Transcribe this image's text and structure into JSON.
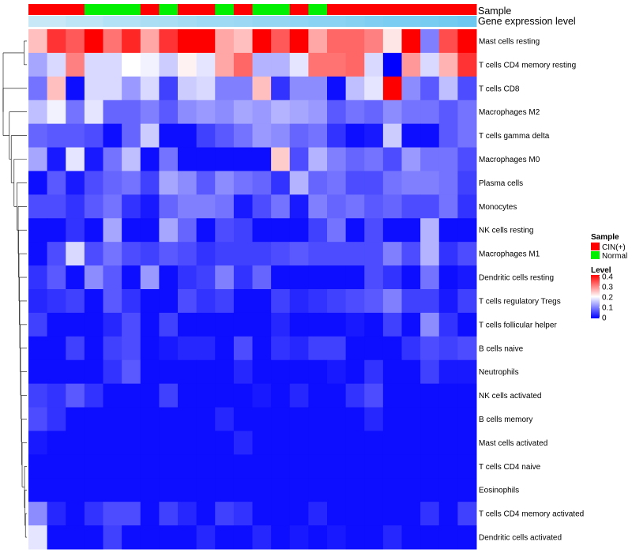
{
  "chart_data": {
    "type": "heatmap",
    "title": "",
    "annotations": [
      {
        "label": "Sample",
        "kind": "categorical"
      },
      {
        "label": "Gene expression level",
        "kind": "continuous"
      }
    ],
    "sample_groups": [
      "CIN(+)",
      "CIN(+)",
      "CIN(+)",
      "Normal",
      "Normal",
      "Normal",
      "CIN(+)",
      "Normal",
      "CIN(+)",
      "CIN(+)",
      "Normal",
      "CIN(+)",
      "Normal",
      "Normal",
      "CIN(+)",
      "Normal",
      "CIN(+)",
      "CIN(+)",
      "CIN(+)",
      "CIN(+)",
      "CIN(+)",
      "CIN(+)",
      "CIN(+)",
      "CIN(+)"
    ],
    "expression_level": [
      0.1,
      0.1,
      0.2,
      0.2,
      0.3,
      0.3,
      0.4,
      0.4,
      0.45,
      0.5,
      0.5,
      0.55,
      0.6,
      0.6,
      0.65,
      0.7,
      0.7,
      0.75,
      0.8,
      0.85,
      0.85,
      0.9,
      0.95,
      1.0
    ],
    "rows": [
      "Mast cells resting",
      "T cells CD4 memory resting",
      "T cells CD8",
      "Macrophages M2",
      "T cells gamma delta",
      "Macrophages M0",
      "Plasma cells",
      "Monocytes",
      "NK cells resting",
      "Macrophages M1",
      "Dendritic cells resting",
      "T cells regulatory  Tregs",
      "T cells follicular helper",
      "B cells naive",
      "Neutrophils",
      "NK cells activated",
      "B cells memory",
      "Mast cells activated",
      "T cells CD4 naive",
      "Eosinophils",
      "T cells CD4 memory activated",
      "Dendritic cells activated"
    ],
    "values": [
      [
        0.25,
        0.36,
        0.33,
        0.4,
        0.31,
        0.37,
        0.27,
        0.36,
        0.4,
        0.4,
        0.27,
        0.25,
        0.4,
        0.33,
        0.4,
        0.27,
        0.32,
        0.32,
        0.3,
        0.22,
        0.4,
        0.1,
        0.34,
        0.4
      ],
      [
        0.13,
        0.17,
        0.3,
        0.17,
        0.17,
        0.2,
        0.19,
        0.16,
        0.21,
        0.18,
        0.27,
        0.32,
        0.14,
        0.14,
        0.18,
        0.31,
        0.31,
        0.32,
        0.17,
        0.0,
        0.28,
        0.17,
        0.26,
        0.36
      ],
      [
        0.09,
        0.25,
        0.01,
        0.17,
        0.17,
        0.12,
        0.17,
        0.05,
        0.16,
        0.17,
        0.1,
        0.1,
        0.25,
        0.04,
        0.11,
        0.11,
        0.01,
        0.15,
        0.18,
        0.4,
        0.11,
        0.07,
        0.15,
        0.06
      ],
      [
        0.15,
        0.19,
        0.09,
        0.18,
        0.08,
        0.08,
        0.1,
        0.07,
        0.11,
        0.12,
        0.11,
        0.13,
        0.12,
        0.14,
        0.13,
        0.12,
        0.07,
        0.09,
        0.08,
        0.11,
        0.09,
        0.09,
        0.07,
        0.09
      ],
      [
        0.08,
        0.07,
        0.07,
        0.06,
        0.01,
        0.08,
        0.16,
        0.01,
        0.01,
        0.05,
        0.07,
        0.09,
        0.12,
        0.11,
        0.08,
        0.09,
        0.04,
        0.01,
        0.02,
        0.16,
        0.01,
        0.01,
        0.07,
        0.09
      ],
      [
        0.13,
        0.02,
        0.18,
        0.02,
        0.09,
        0.15,
        0.01,
        0.09,
        0.01,
        0.01,
        0.01,
        0.01,
        0.01,
        0.24,
        0.06,
        0.14,
        0.1,
        0.08,
        0.09,
        0.06,
        0.12,
        0.09,
        0.09,
        0.06
      ],
      [
        0.01,
        0.07,
        0.02,
        0.06,
        0.08,
        0.09,
        0.05,
        0.13,
        0.11,
        0.07,
        0.11,
        0.09,
        0.08,
        0.04,
        0.14,
        0.08,
        0.09,
        0.06,
        0.06,
        0.09,
        0.1,
        0.1,
        0.09,
        0.05
      ],
      [
        0.06,
        0.06,
        0.04,
        0.07,
        0.09,
        0.04,
        0.02,
        0.08,
        0.1,
        0.1,
        0.09,
        0.02,
        0.06,
        0.09,
        0.02,
        0.1,
        0.08,
        0.09,
        0.07,
        0.08,
        0.06,
        0.06,
        0.09,
        0.04
      ],
      [
        0.01,
        0.01,
        0.04,
        0.01,
        0.13,
        0.01,
        0.01,
        0.13,
        0.08,
        0.01,
        0.06,
        0.05,
        0.01,
        0.01,
        0.01,
        0.05,
        0.09,
        0.01,
        0.06,
        0.01,
        0.01,
        0.14,
        0.01,
        0.01
      ],
      [
        0.01,
        0.06,
        0.17,
        0.06,
        0.09,
        0.06,
        0.05,
        0.07,
        0.06,
        0.04,
        0.05,
        0.05,
        0.05,
        0.06,
        0.07,
        0.06,
        0.06,
        0.06,
        0.06,
        0.1,
        0.06,
        0.14,
        0.04,
        0.06
      ],
      [
        0.04,
        0.07,
        0.01,
        0.11,
        0.07,
        0.01,
        0.12,
        0.01,
        0.04,
        0.05,
        0.1,
        0.04,
        0.08,
        0.01,
        0.01,
        0.01,
        0.01,
        0.01,
        0.06,
        0.04,
        0.01,
        0.09,
        0.01,
        0.02
      ],
      [
        0.03,
        0.04,
        0.05,
        0.01,
        0.07,
        0.04,
        0.01,
        0.01,
        0.06,
        0.04,
        0.05,
        0.01,
        0.01,
        0.05,
        0.03,
        0.04,
        0.05,
        0.06,
        0.07,
        0.1,
        0.05,
        0.05,
        0.02,
        0.05
      ],
      [
        0.05,
        0.01,
        0.01,
        0.01,
        0.03,
        0.06,
        0.01,
        0.05,
        0.01,
        0.01,
        0.01,
        0.01,
        0.01,
        0.03,
        0.01,
        0.01,
        0.01,
        0.02,
        0.01,
        0.05,
        0.01,
        0.11,
        0.04,
        0.01
      ],
      [
        0.01,
        0.01,
        0.05,
        0.01,
        0.05,
        0.06,
        0.01,
        0.02,
        0.03,
        0.03,
        0.01,
        0.06,
        0.01,
        0.04,
        0.03,
        0.05,
        0.05,
        0.01,
        0.01,
        0.01,
        0.04,
        0.06,
        0.05,
        0.06
      ],
      [
        0.01,
        0.01,
        0.01,
        0.01,
        0.04,
        0.07,
        0.01,
        0.01,
        0.01,
        0.01,
        0.01,
        0.03,
        0.01,
        0.01,
        0.01,
        0.01,
        0.02,
        0.01,
        0.04,
        0.01,
        0.01,
        0.05,
        0.02,
        0.02
      ],
      [
        0.05,
        0.04,
        0.07,
        0.04,
        0.01,
        0.01,
        0.01,
        0.05,
        0.01,
        0.01,
        0.01,
        0.01,
        0.02,
        0.01,
        0.03,
        0.01,
        0.01,
        0.04,
        0.06,
        0.01,
        0.01,
        0.01,
        0.01,
        0.01
      ],
      [
        0.06,
        0.04,
        0.01,
        0.01,
        0.01,
        0.01,
        0.01,
        0.01,
        0.01,
        0.01,
        0.03,
        0.01,
        0.01,
        0.01,
        0.01,
        0.01,
        0.01,
        0.01,
        0.03,
        0.01,
        0.01,
        0.01,
        0.01,
        0.01
      ],
      [
        0.02,
        0.01,
        0.01,
        0.01,
        0.01,
        0.01,
        0.01,
        0.01,
        0.01,
        0.01,
        0.01,
        0.03,
        0.01,
        0.01,
        0.01,
        0.01,
        0.01,
        0.01,
        0.01,
        0.01,
        0.01,
        0.01,
        0.01,
        0.01
      ],
      [
        0.01,
        0.01,
        0.01,
        0.01,
        0.01,
        0.01,
        0.01,
        0.01,
        0.01,
        0.01,
        0.01,
        0.01,
        0.01,
        0.01,
        0.01,
        0.01,
        0.01,
        0.01,
        0.01,
        0.01,
        0.01,
        0.01,
        0.01,
        0.01
      ],
      [
        0.01,
        0.01,
        0.01,
        0.01,
        0.01,
        0.01,
        0.01,
        0.01,
        0.01,
        0.01,
        0.01,
        0.01,
        0.01,
        0.01,
        0.01,
        0.01,
        0.01,
        0.01,
        0.01,
        0.01,
        0.01,
        0.01,
        0.01,
        0.01
      ],
      [
        0.11,
        0.03,
        0.01,
        0.04,
        0.06,
        0.06,
        0.01,
        0.05,
        0.03,
        0.01,
        0.05,
        0.04,
        0.01,
        0.01,
        0.01,
        0.03,
        0.01,
        0.01,
        0.01,
        0.01,
        0.01,
        0.04,
        0.01,
        0.05
      ],
      [
        0.18,
        0.01,
        0.01,
        0.01,
        0.05,
        0.01,
        0.01,
        0.01,
        0.01,
        0.03,
        0.01,
        0.01,
        0.03,
        0.01,
        0.02,
        0.01,
        0.02,
        0.01,
        0.01,
        0.03,
        0.01,
        0.01,
        0.01,
        0.01
      ]
    ],
    "dendrogram": {
      "heights": [
        0.12,
        0.92,
        1.0,
        0.74,
        0.66,
        0.54,
        0.42,
        0.36,
        0.28,
        0.2,
        0.22,
        0.26,
        0.18,
        0.14,
        0.22,
        0.12,
        0.16,
        0.2,
        0.1,
        0.08,
        0.06
      ]
    },
    "legend_sample": {
      "title": "Sample",
      "entries": [
        {
          "label": "CIN(+)",
          "color": "#FF0000"
        },
        {
          "label": "Normal",
          "color": "#00EE00"
        }
      ]
    },
    "legend_level": {
      "title": "Level",
      "ticks": [
        "0.4",
        "0.3",
        "0.2",
        "0.1",
        "0"
      ],
      "range": [
        0,
        0.4
      ]
    },
    "colors": {
      "cin": "#FF0000",
      "normal": "#00EE00",
      "expr_low": "#D2ECF8",
      "expr_high": "#6CC8F0",
      "heat_low": "#0000FF",
      "heat_mid": "#FFFFFF",
      "heat_high": "#FF0000"
    }
  }
}
